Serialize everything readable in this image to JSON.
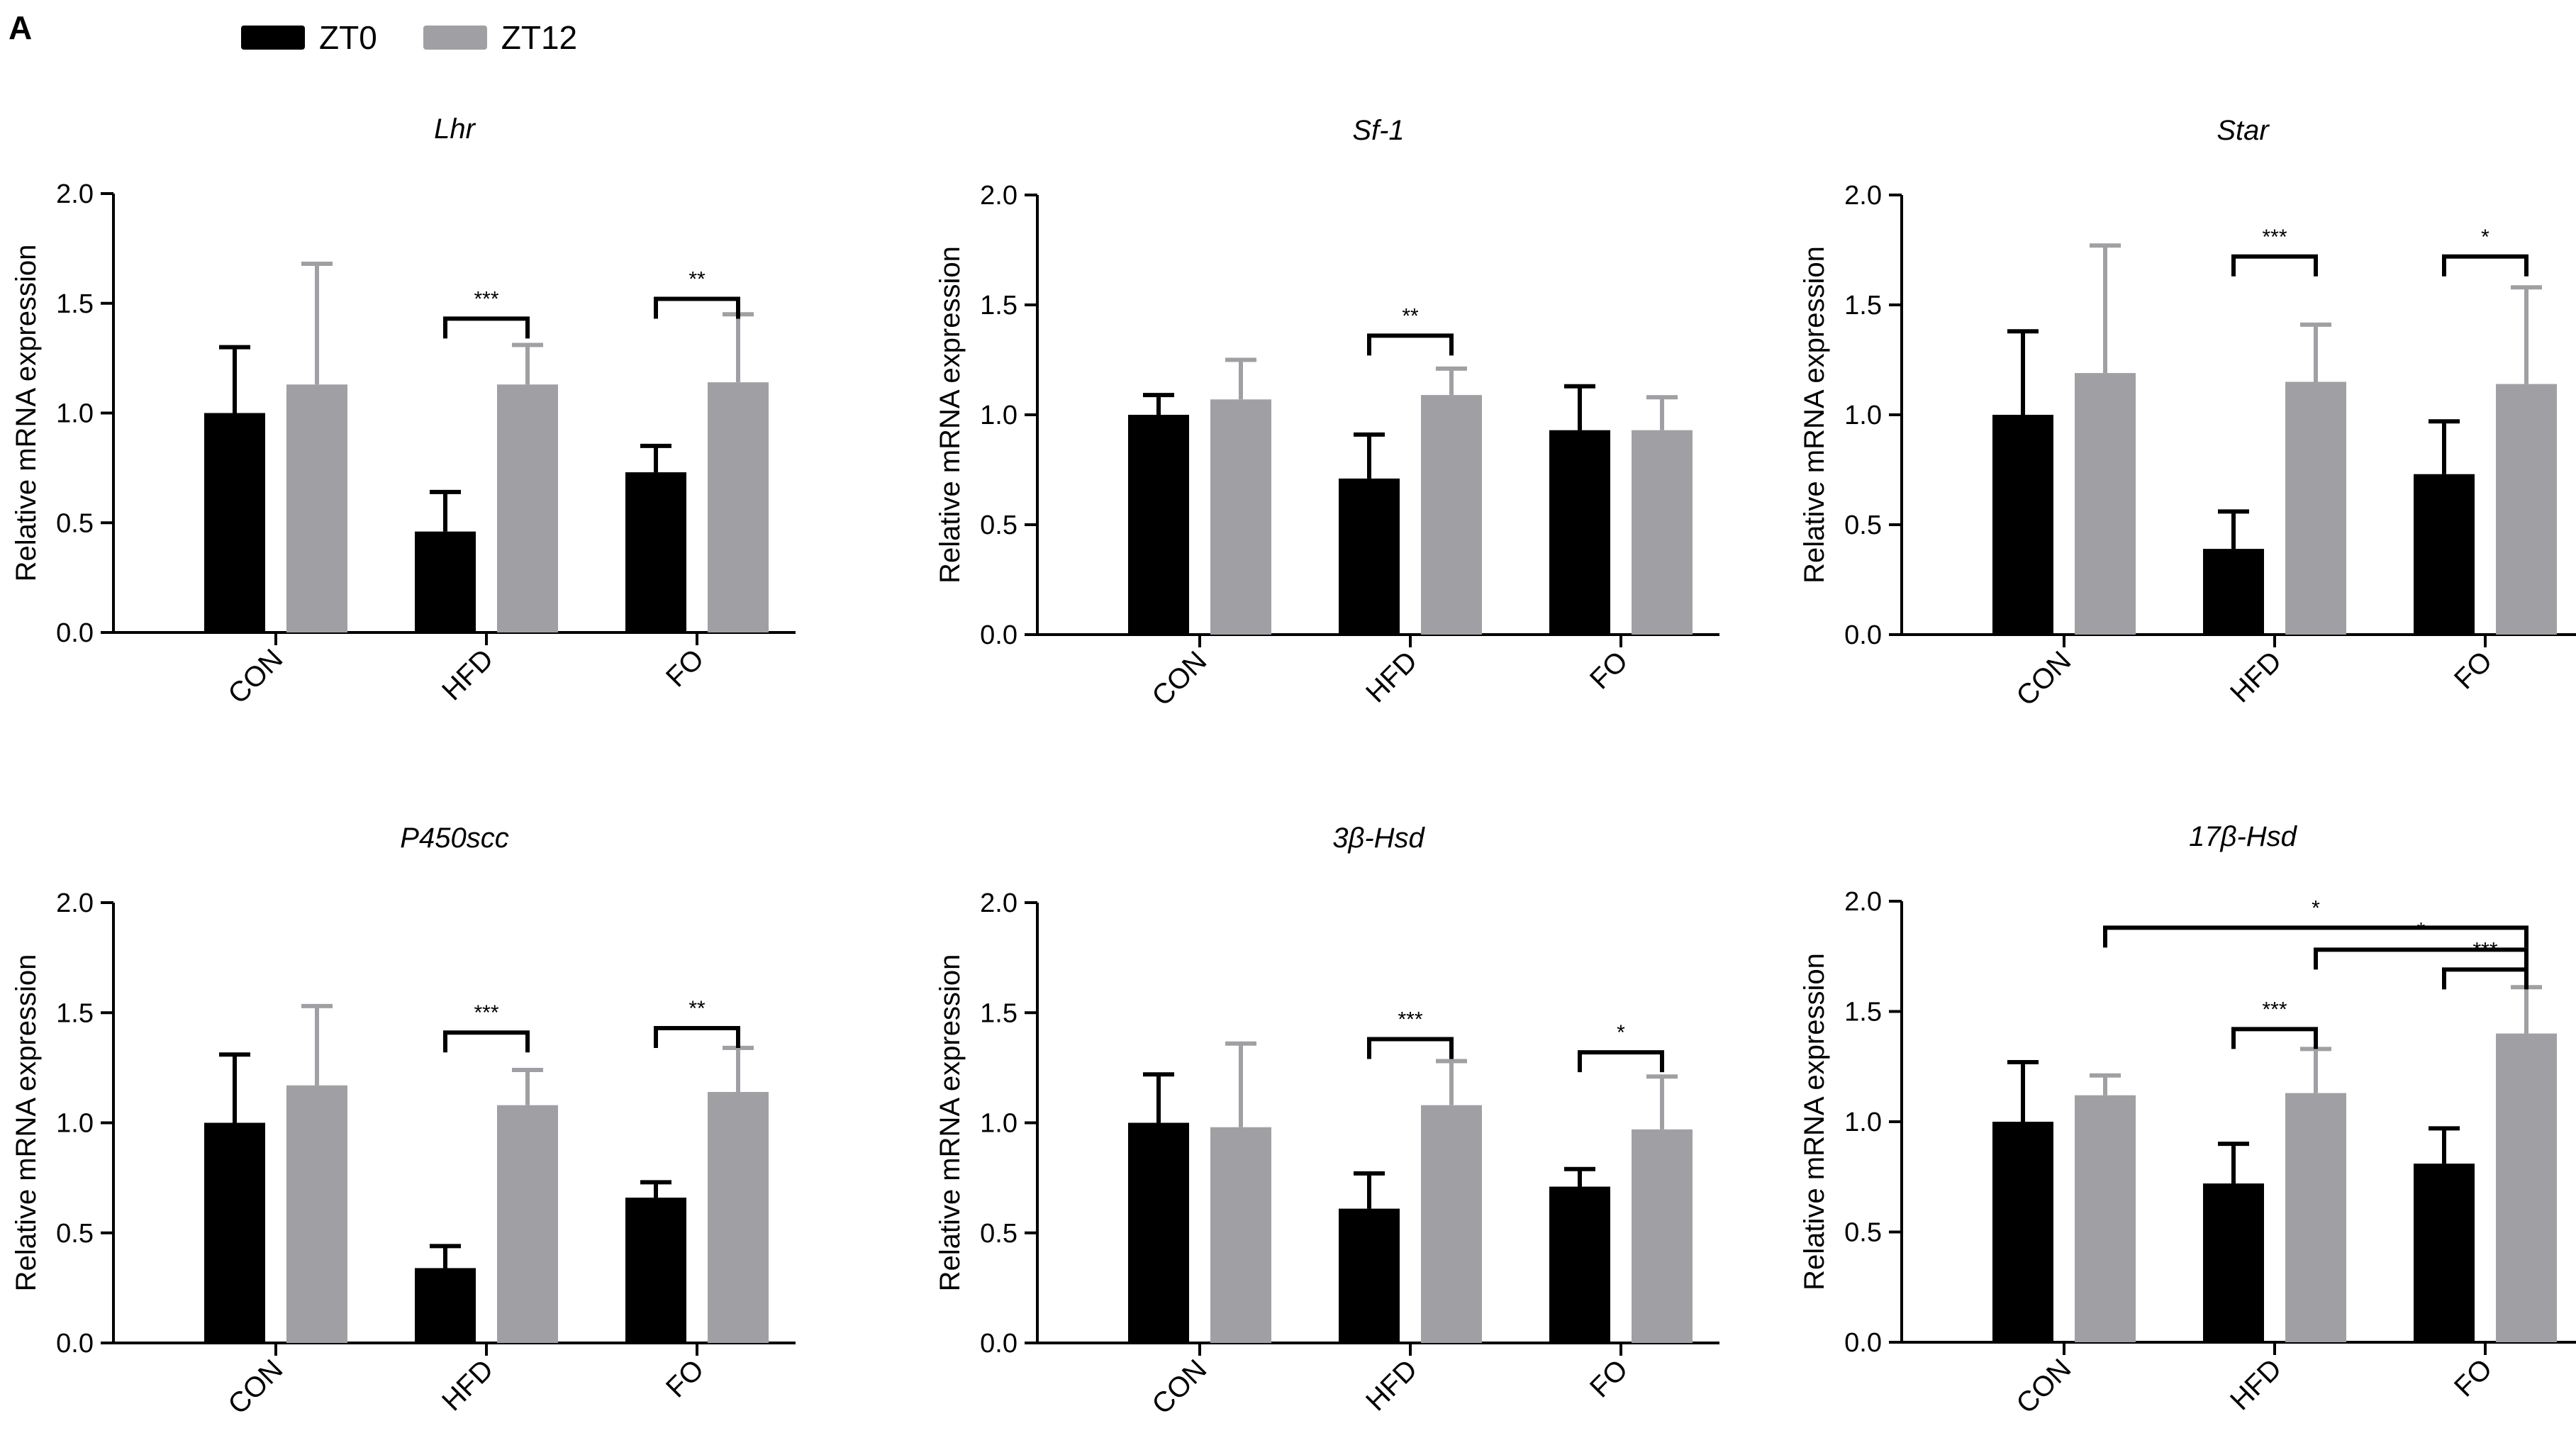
{
  "panel_label": "A",
  "legend": [
    {
      "label": "ZT0",
      "color": "#000000"
    },
    {
      "label": "ZT12",
      "color": "#a0a0a4"
    }
  ],
  "colors": {
    "ZT0": "#000000",
    "ZT12": "#a0a0a4",
    "axis": "#000000"
  },
  "chart_data": [
    {
      "type": "bar",
      "title": "Lhr",
      "ylabel": "Relative mRNA expression",
      "xlabel": "",
      "categories": [
        "CON",
        "HFD",
        "FO"
      ],
      "ylim": [
        0,
        2.0
      ],
      "yticks": [
        "0.0",
        "0.5",
        "1.0",
        "1.5",
        "2.0"
      ],
      "series": [
        {
          "name": "ZT0",
          "values": [
            1.0,
            0.46,
            0.73
          ],
          "errors": [
            0.3,
            0.18,
            0.12
          ]
        },
        {
          "name": "ZT12",
          "values": [
            1.13,
            1.13,
            1.14
          ],
          "errors": [
            0.55,
            0.18,
            0.31
          ]
        }
      ],
      "annotations": [
        {
          "text": "***",
          "from": [
            1,
            0
          ],
          "to": [
            1,
            1
          ],
          "y": 1.43
        },
        {
          "text": "**",
          "from": [
            2,
            0
          ],
          "to": [
            2,
            1
          ],
          "y": 1.52
        }
      ]
    },
    {
      "type": "bar",
      "title": "Sf-1",
      "ylabel": "Relative mRNA expression",
      "xlabel": "",
      "categories": [
        "CON",
        "HFD",
        "FO"
      ],
      "ylim": [
        0,
        2.0
      ],
      "yticks": [
        "0.0",
        "0.5",
        "1.0",
        "1.5",
        "2.0"
      ],
      "series": [
        {
          "name": "ZT0",
          "values": [
            1.0,
            0.71,
            0.93
          ],
          "errors": [
            0.09,
            0.2,
            0.2
          ]
        },
        {
          "name": "ZT12",
          "values": [
            1.07,
            1.09,
            0.93
          ],
          "errors": [
            0.18,
            0.12,
            0.15
          ]
        }
      ],
      "annotations": [
        {
          "text": "**",
          "from": [
            1,
            0
          ],
          "to": [
            1,
            1
          ],
          "y": 1.36
        }
      ]
    },
    {
      "type": "bar",
      "title": "Star",
      "ylabel": "Relative mRNA expression",
      "xlabel": "",
      "categories": [
        "CON",
        "HFD",
        "FO"
      ],
      "ylim": [
        0,
        2.0
      ],
      "yticks": [
        "0.0",
        "0.5",
        "1.0",
        "1.5",
        "2.0"
      ],
      "series": [
        {
          "name": "ZT0",
          "values": [
            1.0,
            0.39,
            0.73
          ],
          "errors": [
            0.38,
            0.17,
            0.24
          ]
        },
        {
          "name": "ZT12",
          "values": [
            1.19,
            1.15,
            1.14
          ],
          "errors": [
            0.58,
            0.26,
            0.44
          ]
        }
      ],
      "annotations": [
        {
          "text": "***",
          "from": [
            1,
            0
          ],
          "to": [
            1,
            1
          ],
          "y": 1.72
        },
        {
          "text": "*",
          "from": [
            2,
            0
          ],
          "to": [
            2,
            1
          ],
          "y": 1.72
        }
      ]
    },
    {
      "type": "bar",
      "title": "P450scc",
      "ylabel": "Relative mRNA expression",
      "xlabel": "",
      "categories": [
        "CON",
        "HFD",
        "FO"
      ],
      "ylim": [
        0,
        2.0
      ],
      "yticks": [
        "0.0",
        "0.5",
        "1.0",
        "1.5",
        "2.0"
      ],
      "series": [
        {
          "name": "ZT0",
          "values": [
            1.0,
            0.34,
            0.66
          ],
          "errors": [
            0.31,
            0.1,
            0.07
          ]
        },
        {
          "name": "ZT12",
          "values": [
            1.17,
            1.08,
            1.14
          ],
          "errors": [
            0.36,
            0.16,
            0.2
          ]
        }
      ],
      "annotations": [
        {
          "text": "***",
          "from": [
            1,
            0
          ],
          "to": [
            1,
            1
          ],
          "y": 1.41
        },
        {
          "text": "**",
          "from": [
            2,
            0
          ],
          "to": [
            2,
            1
          ],
          "y": 1.43
        }
      ]
    },
    {
      "type": "bar",
      "title": "3β-Hsd",
      "ylabel": "Relative mRNA expression",
      "xlabel": "",
      "categories": [
        "CON",
        "HFD",
        "FO"
      ],
      "ylim": [
        0,
        2.0
      ],
      "yticks": [
        "0.0",
        "0.5",
        "1.0",
        "1.5",
        "2.0"
      ],
      "series": [
        {
          "name": "ZT0",
          "values": [
            1.0,
            0.61,
            0.71
          ],
          "errors": [
            0.22,
            0.16,
            0.08
          ]
        },
        {
          "name": "ZT12",
          "values": [
            0.98,
            1.08,
            0.97
          ],
          "errors": [
            0.38,
            0.2,
            0.24
          ]
        }
      ],
      "annotations": [
        {
          "text": "***",
          "from": [
            1,
            0
          ],
          "to": [
            1,
            1
          ],
          "y": 1.38
        },
        {
          "text": "*",
          "from": [
            2,
            0
          ],
          "to": [
            2,
            1
          ],
          "y": 1.32
        }
      ]
    },
    {
      "type": "bar",
      "title": "17β-Hsd",
      "ylabel": "Relative mRNA expression",
      "xlabel": "",
      "categories": [
        "CON",
        "HFD",
        "FO"
      ],
      "ylim": [
        0,
        2.0
      ],
      "yticks": [
        "0.0",
        "0.5",
        "1.0",
        "1.5",
        "2.0"
      ],
      "series": [
        {
          "name": "ZT0",
          "values": [
            1.0,
            0.72,
            0.81
          ],
          "errors": [
            0.27,
            0.18,
            0.16
          ]
        },
        {
          "name": "ZT12",
          "values": [
            1.12,
            1.13,
            1.4
          ],
          "errors": [
            0.09,
            0.2,
            0.21
          ]
        }
      ],
      "annotations": [
        {
          "text": "*",
          "from": [
            0,
            1
          ],
          "to": [
            2,
            1
          ],
          "y": 1.88
        },
        {
          "text": "*",
          "from": [
            1,
            1
          ],
          "to": [
            2,
            1
          ],
          "y": 1.78
        },
        {
          "text": "***",
          "from": [
            1,
            0
          ],
          "to": [
            1,
            1
          ],
          "y": 1.42
        },
        {
          "text": "***",
          "from": [
            2,
            0
          ],
          "to": [
            2,
            1
          ],
          "y": 1.69
        }
      ]
    }
  ]
}
